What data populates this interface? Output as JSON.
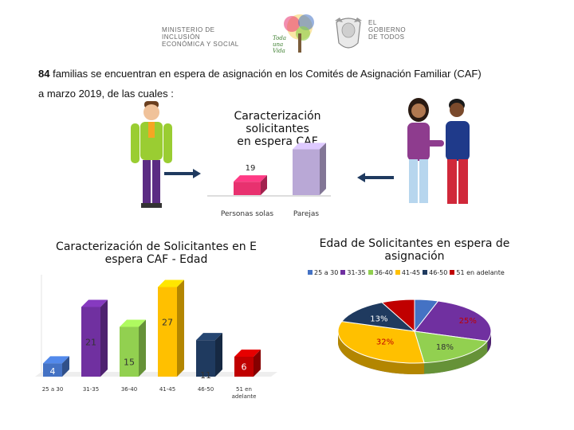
{
  "header": {
    "ministry_line1": "MINISTERIO DE INCLUSIÓN",
    "ministry_line2": "ECONÓMICA Y SOCIAL",
    "toda_una_vida": "Toda una Vida",
    "gobierno_line1": "EL",
    "gobierno_line2": "GOBIERNO",
    "gobierno_line3": "DE TODOS"
  },
  "intro": {
    "line1_number": "84",
    "line1_rest": " familias se encuentran en espera de asignación en los Comités de Asignación Familiar (CAF)",
    "line2": "a marzo 2019, de las cuales :"
  },
  "colors": {
    "arrow": "#1f3a5f",
    "solas": "#e8316f",
    "parejas": "#b9a8d6"
  },
  "chart_data": [
    {
      "type": "bar",
      "title": "Caracterización solicitantes en espera CAF",
      "title_line1": "Caracterización solicitantes",
      "title_line2": "en espera CAF",
      "categories": [
        "Personas solas",
        "Parejas"
      ],
      "values": [
        19,
        65
      ],
      "ylim": [
        0,
        70
      ],
      "colors": [
        "#e8316f",
        "#b9a8d6"
      ]
    },
    {
      "type": "bar",
      "title": "Caracterización de Solicitantes en E espera CAF - Edad",
      "title_line1": "Caracterización de Solicitantes en E",
      "title_line2": "espera CAF - Edad",
      "categories": [
        "25 a 30",
        "31-35",
        "36-40",
        "41-45",
        "46-50",
        "51 en adelante"
      ],
      "category_lines": [
        [
          "25 a 30"
        ],
        [
          "31-35"
        ],
        [
          "36-40"
        ],
        [
          "41-45"
        ],
        [
          "46-50"
        ],
        [
          "51 en",
          "adelante"
        ]
      ],
      "values": [
        4,
        21,
        15,
        27,
        11,
        6
      ],
      "ylim": [
        0,
        30
      ],
      "colors": [
        "#4472c4",
        "#7030a0",
        "#92d050",
        "#ffc000",
        "#1f3a5f",
        "#c00000"
      ]
    },
    {
      "type": "pie",
      "title": "Edad de Solicitantes en espera de asignación",
      "title_line1": "Edad de Solicitantes en espera de",
      "title_line2": "asignación",
      "categories": [
        "25 a 30",
        "31-35",
        "36-40",
        "41-45",
        "46-50",
        "51 en adelante"
      ],
      "values": [
        5,
        25,
        18,
        32,
        13,
        7
      ],
      "labels": [
        "",
        "25%",
        "18%",
        "32%",
        "13%",
        "7%"
      ],
      "colors": [
        "#4472c4",
        "#7030a0",
        "#92d050",
        "#ffc000",
        "#1f3a5f",
        "#c00000"
      ],
      "legend_position": "top"
    }
  ]
}
